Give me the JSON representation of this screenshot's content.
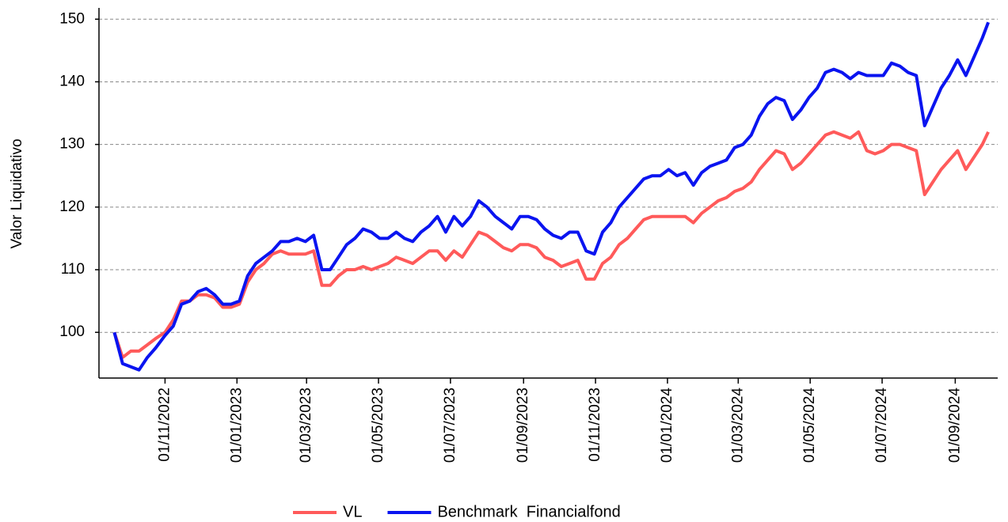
{
  "chart_data": {
    "type": "line",
    "y_label": "Valor Liquidativo",
    "x": [
      "19/09/2022",
      "26/09/2022",
      "03/10/2022",
      "10/10/2022",
      "17/10/2022",
      "24/10/2022",
      "01/11/2022",
      "08/11/2022",
      "15/11/2022",
      "22/11/2022",
      "29/11/2022",
      "06/12/2022",
      "13/12/2022",
      "20/12/2022",
      "27/12/2022",
      "03/01/2023",
      "10/01/2023",
      "17/01/2023",
      "24/01/2023",
      "31/01/2023",
      "07/02/2023",
      "14/02/2023",
      "21/02/2023",
      "28/02/2023",
      "07/03/2023",
      "14/03/2023",
      "21/03/2023",
      "28/03/2023",
      "04/04/2023",
      "11/04/2023",
      "18/04/2023",
      "25/04/2023",
      "02/05/2023",
      "09/05/2023",
      "16/05/2023",
      "23/05/2023",
      "30/05/2023",
      "06/06/2023",
      "13/06/2023",
      "20/06/2023",
      "27/06/2023",
      "04/07/2023",
      "11/07/2023",
      "18/07/2023",
      "25/07/2023",
      "01/08/2023",
      "08/08/2023",
      "15/08/2023",
      "22/08/2023",
      "29/08/2023",
      "05/09/2023",
      "12/09/2023",
      "19/09/2023",
      "26/09/2023",
      "03/10/2023",
      "10/10/2023",
      "17/10/2023",
      "24/10/2023",
      "31/10/2023",
      "07/11/2023",
      "14/11/2023",
      "21/11/2023",
      "28/11/2023",
      "05/12/2023",
      "12/12/2023",
      "19/12/2023",
      "26/12/2023",
      "02/01/2024",
      "09/01/2024",
      "16/01/2024",
      "23/01/2024",
      "30/01/2024",
      "06/02/2024",
      "13/02/2024",
      "20/02/2024",
      "27/02/2024",
      "05/03/2024",
      "12/03/2024",
      "19/03/2024",
      "26/03/2024",
      "02/04/2024",
      "09/04/2024",
      "16/04/2024",
      "23/04/2024",
      "30/04/2024",
      "07/05/2024",
      "14/05/2024",
      "21/05/2024",
      "28/05/2024",
      "04/06/2024",
      "11/06/2024",
      "18/06/2024",
      "25/06/2024",
      "02/07/2024",
      "09/07/2024",
      "16/07/2024",
      "23/07/2024",
      "30/07/2024",
      "06/08/2024",
      "13/08/2024",
      "20/08/2024",
      "27/08/2024",
      "03/09/2024",
      "10/09/2024",
      "17/09/2024",
      "24/09/2024",
      "29/09/2024"
    ],
    "series": [
      {
        "name": "VL",
        "color": "#ff5a5a",
        "values": [
          100,
          96,
          97,
          97,
          98,
          99,
          100,
          102,
          105,
          105,
          106,
          106,
          105.5,
          104,
          104,
          104.5,
          108,
          110,
          111,
          112.5,
          113,
          112.5,
          112.5,
          112.5,
          113,
          107.5,
          107.5,
          109,
          110,
          110,
          110.5,
          110,
          110.5,
          111,
          112,
          111.5,
          111,
          112,
          113,
          113,
          111.5,
          113,
          112,
          114,
          116,
          115.5,
          114.5,
          113.5,
          113,
          114,
          114,
          113.5,
          112,
          111.5,
          110.5,
          111,
          111.5,
          108.5,
          108.5,
          111,
          112,
          114,
          115,
          116.5,
          118,
          118.5,
          118.5,
          118.5,
          118.5,
          118.5,
          117.5,
          119,
          120,
          121,
          121.5,
          122.5,
          123,
          124,
          126,
          127.5,
          129,
          128.5,
          126,
          127,
          128.5,
          130,
          131.5,
          132,
          131.5,
          131,
          132,
          129,
          128.5,
          129,
          130,
          130,
          129.5,
          129,
          122,
          124,
          126,
          127.5,
          129,
          126,
          128,
          130,
          132
        ]
      },
      {
        "name": "Benchmark  Financialfond",
        "color": "#0a14f0",
        "values": [
          100,
          95,
          94.5,
          94,
          96,
          97.5,
          99.5,
          101,
          104.5,
          105,
          106.5,
          107,
          106,
          104.5,
          104.5,
          105,
          109,
          111,
          112,
          113,
          114.5,
          114.5,
          115,
          114.5,
          115.5,
          110,
          110,
          112,
          114,
          115,
          116.5,
          116,
          115,
          115,
          116,
          115,
          114.5,
          116,
          117,
          118.5,
          116,
          118.5,
          117,
          118.5,
          121,
          120,
          118.5,
          117.5,
          116.5,
          118.5,
          118.5,
          118,
          116.5,
          115.5,
          115,
          116,
          116,
          113,
          112.5,
          116,
          117.5,
          120,
          121.5,
          123,
          124.5,
          125,
          125,
          126,
          125,
          125.5,
          123.5,
          125.5,
          126.5,
          127,
          127.5,
          129.5,
          130,
          131.5,
          134.5,
          136.5,
          137.5,
          137,
          134,
          135.5,
          137.5,
          139,
          141.5,
          142,
          141.5,
          140.5,
          141.5,
          141,
          141,
          141,
          143,
          142.5,
          141.5,
          141,
          133,
          136,
          139,
          141,
          143.5,
          141,
          144,
          147,
          149.5
        ]
      }
    ],
    "xlim": [
      "06/09/2022",
      "07/10/2024"
    ],
    "xticks": [
      "01/11/2022",
      "01/01/2023",
      "01/03/2023",
      "01/05/2023",
      "01/07/2023",
      "01/09/2023",
      "01/11/2023",
      "01/01/2024",
      "01/03/2024",
      "01/05/2024",
      "01/07/2024",
      "01/09/2024"
    ],
    "ylim": [
      92.7,
      151.8
    ],
    "yticks": [
      100,
      110,
      120,
      130,
      140,
      150
    ],
    "grid": true,
    "legend": "bottom"
  }
}
